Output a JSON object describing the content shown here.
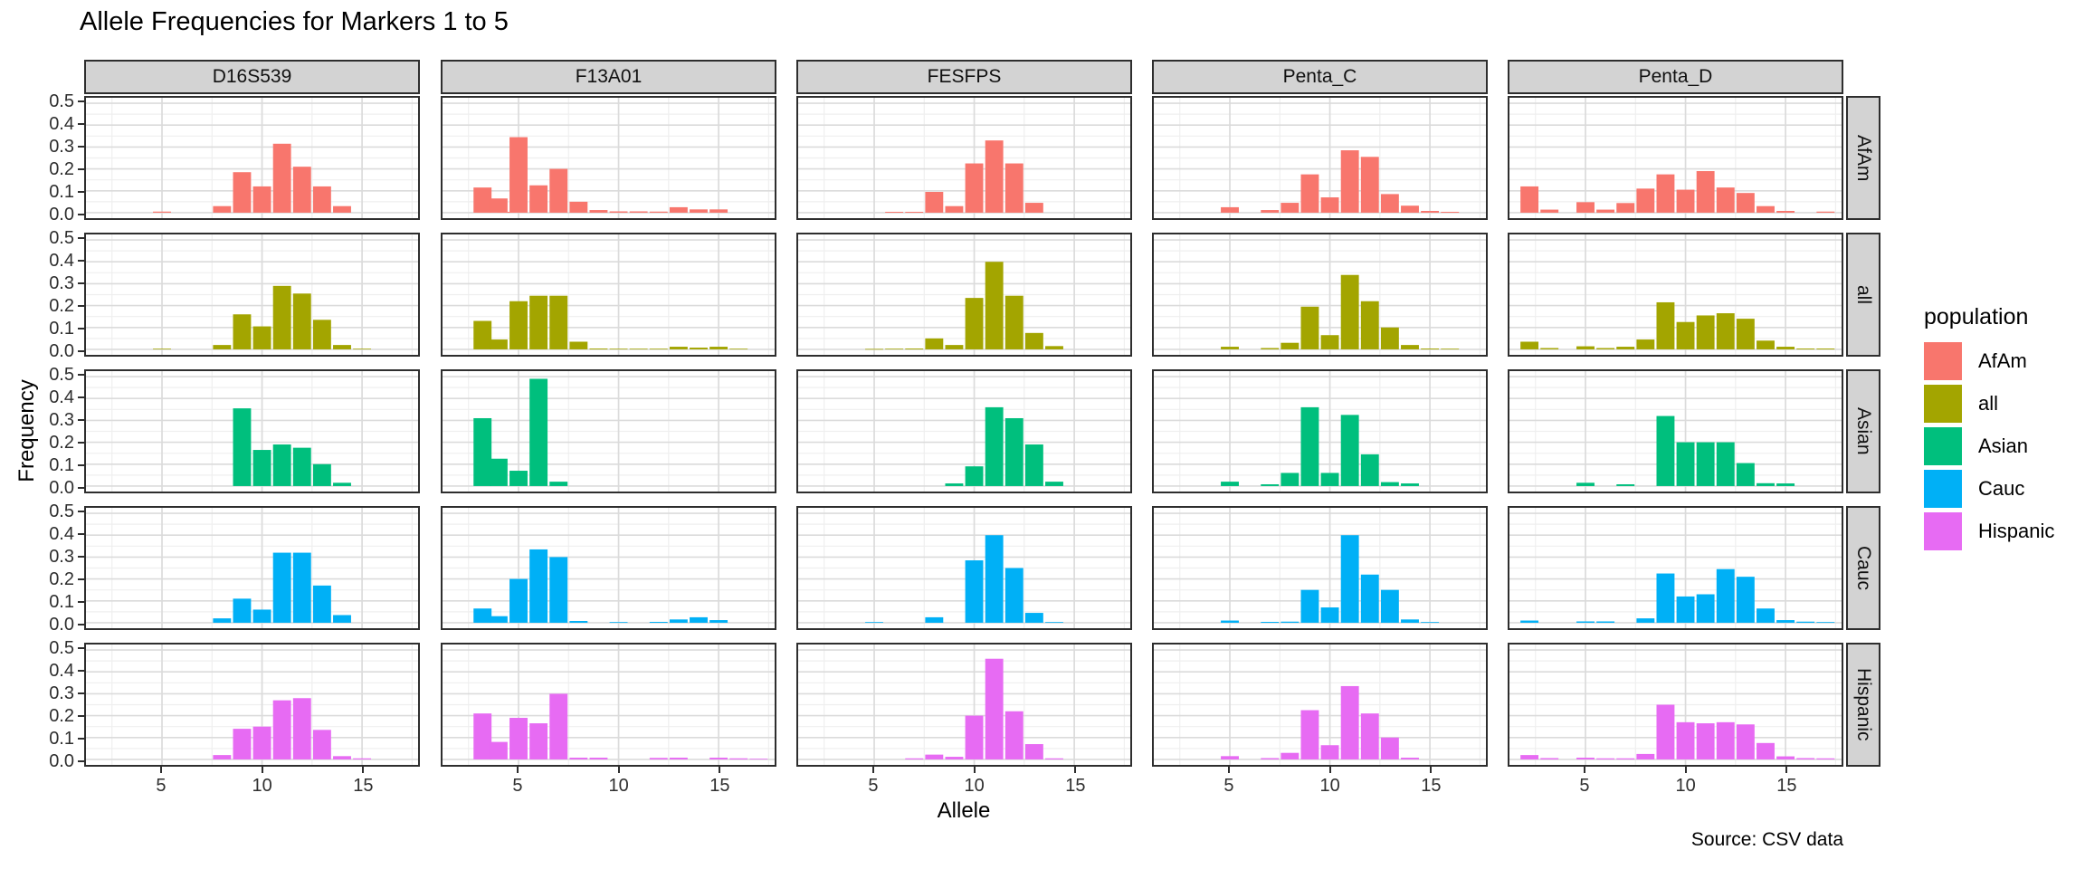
{
  "title": "Allele Frequencies for Markers 1 to 5",
  "x_axis_title": "Allele",
  "y_axis_title": "Frequency",
  "caption": "Source: CSV data",
  "legend": {
    "title": "population",
    "entries": [
      {
        "label": "AfAm",
        "color": "#F8766D"
      },
      {
        "label": "all",
        "color": "#A3A500"
      },
      {
        "label": "Asian",
        "color": "#00BF7D"
      },
      {
        "label": "Cauc",
        "color": "#00B0F6"
      },
      {
        "label": "Hispanic",
        "color": "#E76BF3"
      }
    ]
  },
  "chart_data": {
    "type": "bar",
    "facet_columns": [
      "D16S539",
      "F13A01",
      "FESFPS",
      "Penta_C",
      "Penta_D"
    ],
    "facet_rows": [
      "AfAm",
      "all",
      "Asian",
      "Cauc",
      "Hispanic"
    ],
    "xlabel": "Allele",
    "ylabel": "Frequency",
    "x_ticks": [
      5,
      10,
      15
    ],
    "y_ticks": [
      0.0,
      0.1,
      0.2,
      0.3,
      0.4,
      0.5
    ],
    "x_minor_ticks": [
      2.5,
      7.5,
      12.5,
      17.5
    ],
    "y_minor_ticks": [
      0.05,
      0.15,
      0.25,
      0.35,
      0.45
    ],
    "x_range": [
      1.2,
      17.8
    ],
    "y_range": [
      0,
      0.5
    ],
    "grid": "on",
    "legend_position": "right",
    "bar_width": 0.9,
    "series_colors": {
      "AfAm": "#F8766D",
      "all": "#A3A500",
      "Asian": "#00BF7D",
      "Cauc": "#00B0F6",
      "Hispanic": "#E76BF3"
    },
    "panels": {
      "D16S539": {
        "AfAm": [
          [
            5,
            0.005
          ],
          [
            8,
            0.03
          ],
          [
            9,
            0.185
          ],
          [
            10,
            0.12
          ],
          [
            11,
            0.315
          ],
          [
            12,
            0.21
          ],
          [
            13,
            0.12
          ],
          [
            14,
            0.03
          ]
        ],
        "all": [
          [
            5,
            0.003
          ],
          [
            8,
            0.02
          ],
          [
            9,
            0.16
          ],
          [
            10,
            0.105
          ],
          [
            11,
            0.29
          ],
          [
            12,
            0.255
          ],
          [
            13,
            0.135
          ],
          [
            14,
            0.02
          ],
          [
            15,
            0.003
          ]
        ],
        "Asian": [
          [
            9,
            0.355
          ],
          [
            10,
            0.165
          ],
          [
            11,
            0.19
          ],
          [
            12,
            0.175
          ],
          [
            13,
            0.1
          ],
          [
            14,
            0.015
          ]
        ],
        "Cauc": [
          [
            8,
            0.02
          ],
          [
            9,
            0.11
          ],
          [
            10,
            0.06
          ],
          [
            11,
            0.32
          ],
          [
            12,
            0.32
          ],
          [
            13,
            0.17
          ],
          [
            14,
            0.035
          ]
        ],
        "Hispanic": [
          [
            8,
            0.02
          ],
          [
            9,
            0.14
          ],
          [
            10,
            0.15
          ],
          [
            11,
            0.27
          ],
          [
            12,
            0.28
          ],
          [
            13,
            0.135
          ],
          [
            14,
            0.015
          ],
          [
            15,
            0.005
          ]
        ]
      },
      "F13A01": {
        "AfAm": [
          [
            3.2,
            0.115
          ],
          [
            4,
            0.065
          ],
          [
            4.4,
            0.004
          ],
          [
            5,
            0.345
          ],
          [
            6,
            0.125
          ],
          [
            7,
            0.2
          ],
          [
            8,
            0.05
          ],
          [
            9,
            0.012
          ],
          [
            10,
            0.006
          ],
          [
            11,
            0.006
          ],
          [
            12,
            0.005
          ],
          [
            13,
            0.025
          ],
          [
            14,
            0.015
          ],
          [
            15,
            0.015
          ]
        ],
        "all": [
          [
            3.2,
            0.13
          ],
          [
            4,
            0.045
          ],
          [
            5,
            0.22
          ],
          [
            6,
            0.245
          ],
          [
            7,
            0.245
          ],
          [
            8,
            0.035
          ],
          [
            9,
            0.004
          ],
          [
            10,
            0.003
          ],
          [
            11,
            0.003
          ],
          [
            12,
            0.003
          ],
          [
            13,
            0.012
          ],
          [
            14,
            0.008
          ],
          [
            15,
            0.012
          ],
          [
            16,
            0.003
          ]
        ],
        "Asian": [
          [
            3.2,
            0.31
          ],
          [
            4,
            0.125
          ],
          [
            5,
            0.07
          ],
          [
            6,
            0.49
          ],
          [
            7,
            0.02
          ]
        ],
        "Cauc": [
          [
            3.2,
            0.065
          ],
          [
            4,
            0.03
          ],
          [
            5,
            0.2
          ],
          [
            6,
            0.335
          ],
          [
            7,
            0.3
          ],
          [
            8,
            0.008
          ],
          [
            10,
            0.003
          ],
          [
            12,
            0.004
          ],
          [
            13,
            0.015
          ],
          [
            14,
            0.025
          ],
          [
            15,
            0.012
          ]
        ],
        "Hispanic": [
          [
            3.2,
            0.21
          ],
          [
            4,
            0.08
          ],
          [
            5,
            0.19
          ],
          [
            6,
            0.165
          ],
          [
            7,
            0.3
          ],
          [
            8,
            0.008
          ],
          [
            9,
            0.008
          ],
          [
            12,
            0.007
          ],
          [
            13,
            0.008
          ],
          [
            15,
            0.008
          ],
          [
            16,
            0.005
          ],
          [
            17,
            0.003
          ]
        ]
      },
      "FESFPS": {
        "AfAm": [
          [
            6,
            0.004
          ],
          [
            7,
            0.004
          ],
          [
            8,
            0.095
          ],
          [
            9,
            0.03
          ],
          [
            10,
            0.225
          ],
          [
            11,
            0.33
          ],
          [
            12,
            0.225
          ],
          [
            13,
            0.045
          ]
        ],
        "all": [
          [
            5,
            0.002
          ],
          [
            6,
            0.003
          ],
          [
            7,
            0.004
          ],
          [
            8,
            0.05
          ],
          [
            9,
            0.02
          ],
          [
            10,
            0.235
          ],
          [
            11,
            0.4
          ],
          [
            12,
            0.245
          ],
          [
            13,
            0.075
          ],
          [
            14,
            0.015
          ]
        ],
        "Asian": [
          [
            9,
            0.012
          ],
          [
            10,
            0.09
          ],
          [
            11,
            0.36
          ],
          [
            12,
            0.31
          ],
          [
            13,
            0.19
          ],
          [
            14,
            0.02
          ]
        ],
        "Cauc": [
          [
            5,
            0.003
          ],
          [
            8,
            0.025
          ],
          [
            10,
            0.285
          ],
          [
            11,
            0.4
          ],
          [
            12,
            0.25
          ],
          [
            13,
            0.045
          ],
          [
            14,
            0.003
          ]
        ],
        "Hispanic": [
          [
            7,
            0.005
          ],
          [
            8,
            0.022
          ],
          [
            9,
            0.012
          ],
          [
            10,
            0.2
          ],
          [
            11,
            0.46
          ],
          [
            12,
            0.22
          ],
          [
            13,
            0.07
          ],
          [
            14,
            0.005
          ]
        ]
      },
      "Penta_C": {
        "AfAm": [
          [
            5,
            0.025
          ],
          [
            7,
            0.012
          ],
          [
            8,
            0.045
          ],
          [
            9,
            0.175
          ],
          [
            10,
            0.07
          ],
          [
            11,
            0.285
          ],
          [
            12,
            0.255
          ],
          [
            13,
            0.085
          ],
          [
            14,
            0.032
          ],
          [
            15,
            0.008
          ],
          [
            16,
            0.004
          ]
        ],
        "all": [
          [
            5,
            0.012
          ],
          [
            7,
            0.006
          ],
          [
            8,
            0.03
          ],
          [
            9,
            0.195
          ],
          [
            10,
            0.065
          ],
          [
            11,
            0.34
          ],
          [
            12,
            0.22
          ],
          [
            13,
            0.1
          ],
          [
            14,
            0.02
          ],
          [
            15,
            0.004
          ],
          [
            16,
            0.003
          ]
        ],
        "Asian": [
          [
            5,
            0.02
          ],
          [
            7,
            0.008
          ],
          [
            8,
            0.06
          ],
          [
            9,
            0.36
          ],
          [
            10,
            0.06
          ],
          [
            11,
            0.325
          ],
          [
            12,
            0.145
          ],
          [
            13,
            0.018
          ],
          [
            14,
            0.012
          ]
        ],
        "Cauc": [
          [
            5,
            0.01
          ],
          [
            7,
            0.004
          ],
          [
            8,
            0.005
          ],
          [
            9,
            0.15
          ],
          [
            10,
            0.07
          ],
          [
            11,
            0.4
          ],
          [
            12,
            0.22
          ],
          [
            13,
            0.15
          ],
          [
            14,
            0.015
          ],
          [
            15,
            0.003
          ]
        ],
        "Hispanic": [
          [
            5,
            0.015
          ],
          [
            7,
            0.006
          ],
          [
            8,
            0.03
          ],
          [
            9,
            0.225
          ],
          [
            10,
            0.065
          ],
          [
            11,
            0.335
          ],
          [
            12,
            0.21
          ],
          [
            13,
            0.1
          ],
          [
            14,
            0.008
          ]
        ]
      },
      "Penta_D": {
        "AfAm": [
          [
            2.2,
            0.12
          ],
          [
            3.2,
            0.014
          ],
          [
            5,
            0.048
          ],
          [
            6,
            0.014
          ],
          [
            7,
            0.044
          ],
          [
            8,
            0.11
          ],
          [
            9,
            0.175
          ],
          [
            10,
            0.105
          ],
          [
            11,
            0.19
          ],
          [
            12,
            0.115
          ],
          [
            13,
            0.09
          ],
          [
            14,
            0.03
          ],
          [
            15,
            0.008
          ],
          [
            17,
            0.005
          ]
        ],
        "all": [
          [
            2.2,
            0.035
          ],
          [
            3.2,
            0.006
          ],
          [
            5,
            0.014
          ],
          [
            6,
            0.006
          ],
          [
            7,
            0.012
          ],
          [
            8,
            0.045
          ],
          [
            9,
            0.215
          ],
          [
            10,
            0.125
          ],
          [
            11,
            0.155
          ],
          [
            12,
            0.165
          ],
          [
            13,
            0.14
          ],
          [
            14,
            0.04
          ],
          [
            15,
            0.012
          ],
          [
            16,
            0.004
          ],
          [
            17,
            0.004
          ]
        ],
        "Asian": [
          [
            5,
            0.015
          ],
          [
            7,
            0.008
          ],
          [
            9,
            0.32
          ],
          [
            10,
            0.2
          ],
          [
            11,
            0.2
          ],
          [
            12,
            0.2
          ],
          [
            13,
            0.105
          ],
          [
            14,
            0.013
          ],
          [
            15,
            0.012
          ]
        ],
        "Cauc": [
          [
            2.2,
            0.01
          ],
          [
            5,
            0.006
          ],
          [
            6,
            0.006
          ],
          [
            8,
            0.02
          ],
          [
            9,
            0.225
          ],
          [
            10,
            0.12
          ],
          [
            11,
            0.13
          ],
          [
            12,
            0.245
          ],
          [
            13,
            0.21
          ],
          [
            14,
            0.065
          ],
          [
            15,
            0.012
          ],
          [
            16,
            0.005
          ],
          [
            17,
            0.003
          ]
        ],
        "Hispanic": [
          [
            2.2,
            0.02
          ],
          [
            3.2,
            0.006
          ],
          [
            5,
            0.008
          ],
          [
            6,
            0.005
          ],
          [
            7,
            0.005
          ],
          [
            8,
            0.025
          ],
          [
            9,
            0.25
          ],
          [
            10,
            0.17
          ],
          [
            11,
            0.165
          ],
          [
            12,
            0.17
          ],
          [
            13,
            0.16
          ],
          [
            14,
            0.075
          ],
          [
            15,
            0.014
          ],
          [
            16,
            0.006
          ],
          [
            17,
            0.005
          ]
        ]
      }
    }
  }
}
